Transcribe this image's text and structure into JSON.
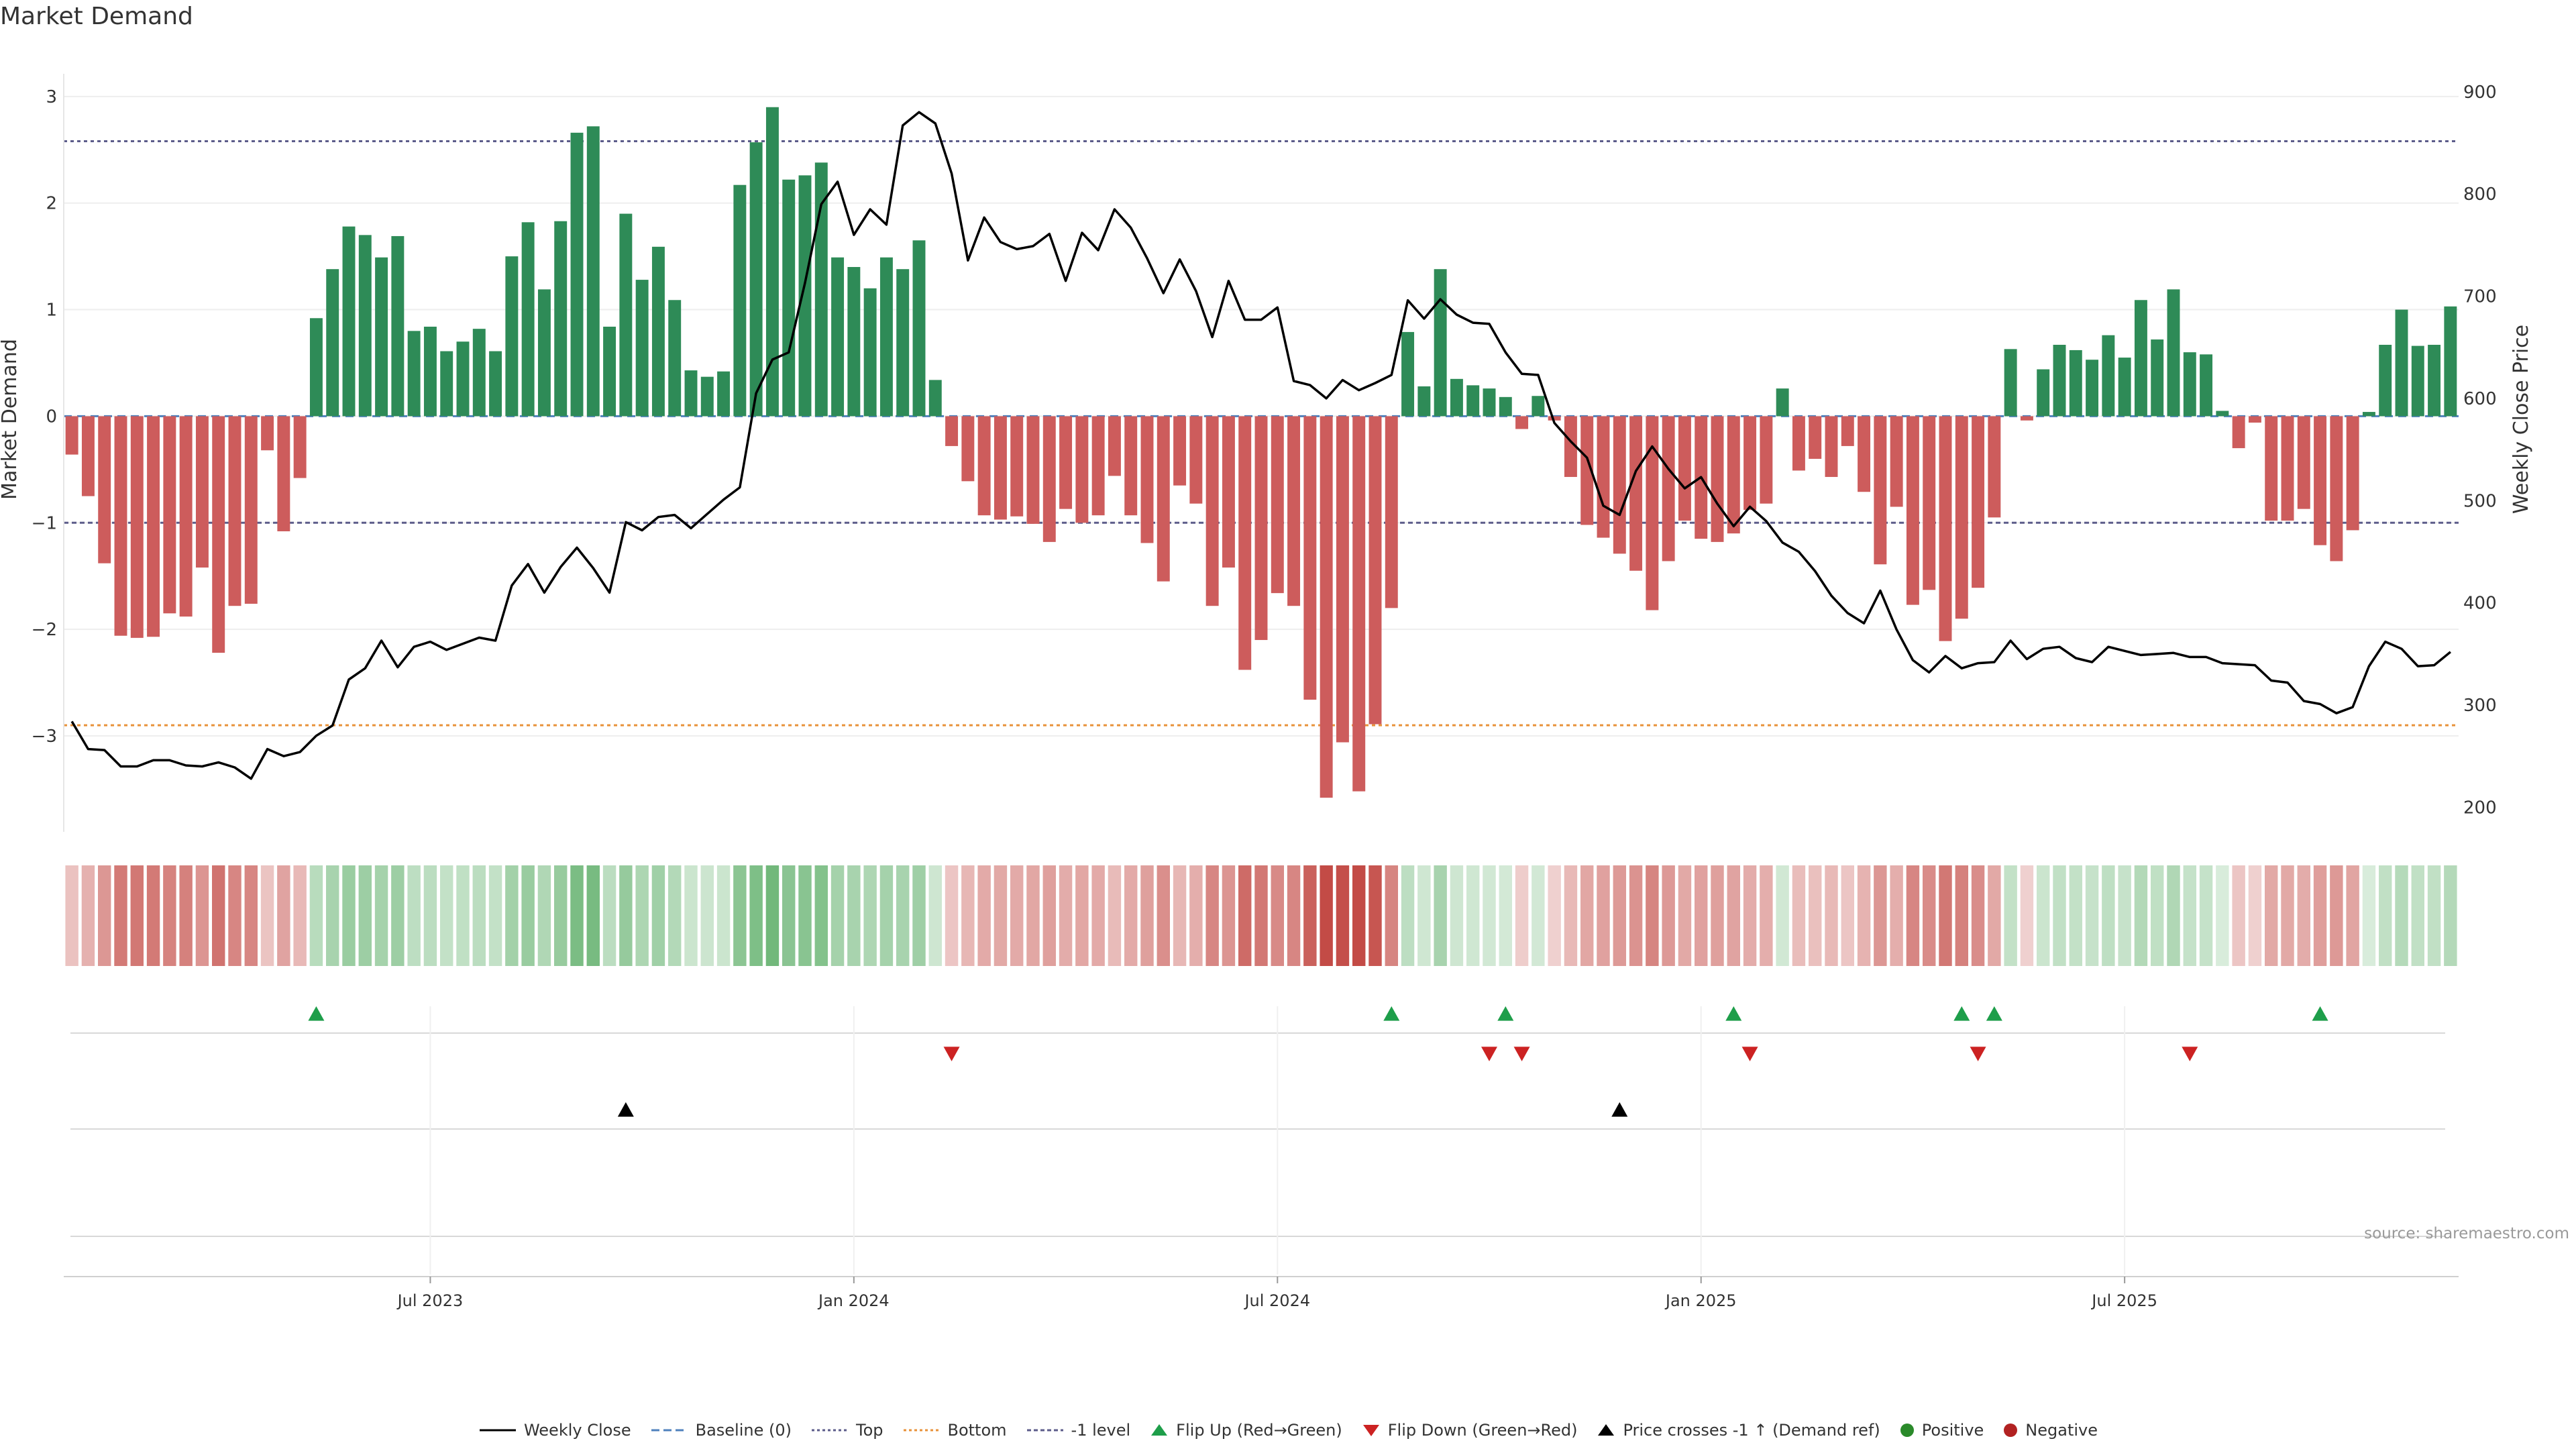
{
  "title": "Market Demand",
  "source": "source: sharemaestro.com",
  "colors": {
    "positive": "#2e8b57",
    "negative": "#cd5c5c",
    "price": "#000000",
    "top": "#5c5c8a",
    "bottom": "#e8923a",
    "baseline": "#4f81bd",
    "flip_up": "#1e9e4a",
    "flip_down": "#cc2222",
    "cross": "#000000",
    "grid": "#eeeeee"
  },
  "chart_data": {
    "type": "bar",
    "title": "Market Demand",
    "ylabel": "Market Demand",
    "y2label": "Weekly Close Price",
    "ylim": [
      -3.9,
      3.15
    ],
    "y2lim": [
      176,
      911
    ],
    "yticks": [
      {
        "v": 3,
        "label": "3"
      },
      {
        "v": 2,
        "label": "2"
      },
      {
        "v": 1,
        "label": "1"
      },
      {
        "v": 0,
        "label": "0"
      },
      {
        "v": -1,
        "label": "−1"
      },
      {
        "v": -2,
        "label": "−2"
      },
      {
        "v": -3,
        "label": "−3"
      }
    ],
    "y2ticks": [
      {
        "v": 900,
        "label": "900"
      },
      {
        "v": 800,
        "label": "800"
      },
      {
        "v": 700,
        "label": "700"
      },
      {
        "v": 600,
        "label": "600"
      },
      {
        "v": 500,
        "label": "500"
      },
      {
        "v": 400,
        "label": "400"
      },
      {
        "v": 300,
        "label": "300"
      },
      {
        "v": 200,
        "label": "200"
      }
    ],
    "xticks": [
      {
        "index": 22,
        "label": "Jul 2023"
      },
      {
        "index": 48,
        "label": "Jan 2024"
      },
      {
        "index": 74,
        "label": "Jul 2024"
      },
      {
        "index": 100,
        "label": "Jan 2025"
      },
      {
        "index": 126,
        "label": "Jul 2025"
      }
    ],
    "reference_lines": {
      "top": 2.58,
      "bottom": -2.9,
      "minus_one": -1,
      "baseline": 0
    },
    "demand": [
      -0.36,
      -0.75,
      -1.38,
      -2.06,
      -2.08,
      -2.07,
      -1.85,
      -1.88,
      -1.42,
      -2.22,
      -1.78,
      -1.76,
      -0.32,
      -1.08,
      -0.58,
      0.92,
      1.38,
      1.78,
      1.7,
      1.49,
      1.69,
      0.8,
      0.84,
      0.61,
      0.7,
      0.82,
      0.61,
      1.5,
      1.82,
      1.19,
      1.83,
      2.66,
      2.72,
      0.84,
      1.9,
      1.28,
      1.59,
      1.09,
      0.43,
      0.37,
      0.42,
      2.17,
      2.57,
      2.9,
      2.22,
      2.26,
      2.38,
      1.49,
      1.4,
      1.2,
      1.49,
      1.38,
      1.65,
      0.34,
      -0.28,
      -0.61,
      -0.93,
      -0.97,
      -0.94,
      -1.01,
      -1.18,
      -0.87,
      -1.0,
      -0.93,
      -0.56,
      -0.93,
      -1.19,
      -1.55,
      -0.65,
      -0.82,
      -1.78,
      -1.42,
      -2.38,
      -2.1,
      -1.66,
      -1.78,
      -2.66,
      -3.58,
      -3.06,
      -3.52,
      -2.89,
      -1.8,
      0.79,
      0.28,
      1.38,
      0.35,
      0.29,
      0.26,
      0.18,
      -0.12,
      0.19,
      -0.04,
      -0.57,
      -1.02,
      -1.14,
      -1.29,
      -1.45,
      -1.82,
      -1.36,
      -0.98,
      -1.15,
      -1.18,
      -1.1,
      -0.88,
      -0.82,
      0.26,
      -0.51,
      -0.4,
      -0.57,
      -0.28,
      -0.71,
      -1.39,
      -0.85,
      -1.77,
      -1.63,
      -2.11,
      -1.9,
      -1.61,
      -0.95,
      0.63,
      -0.04,
      0.44,
      0.67,
      0.62,
      0.53,
      0.76,
      0.55,
      1.09,
      0.72,
      1.19,
      0.6,
      0.58,
      0.05,
      -0.3,
      -0.06,
      -0.98,
      -0.98,
      -0.87,
      -1.21,
      -1.36,
      -1.07,
      0.04,
      0.67,
      1.0,
      0.66,
      0.67,
      1.03
    ],
    "price": [
      284,
      257,
      256,
      240,
      240,
      246,
      246,
      241,
      240,
      244,
      239,
      228,
      257,
      250,
      254,
      270,
      280,
      325,
      336,
      363,
      337,
      357,
      362,
      354,
      360,
      366,
      363,
      417,
      438,
      410,
      435,
      454,
      434,
      410,
      479,
      471,
      484,
      486,
      473,
      487,
      501,
      513,
      605,
      638,
      645,
      713,
      790,
      812,
      760,
      785,
      770,
      867,
      880,
      869,
      820,
      735,
      777,
      753,
      746,
      749,
      761,
      715,
      762,
      745,
      785,
      767,
      737,
      703,
      736,
      705,
      660,
      715,
      677,
      677,
      689,
      617,
      613,
      600,
      618,
      608,
      615,
      623,
      696,
      678,
      697,
      682,
      674,
      673,
      645,
      624,
      623,
      576,
      558,
      542,
      495,
      486,
      529,
      553,
      531,
      512,
      523,
      497,
      475,
      494,
      480,
      459,
      450,
      431,
      407,
      390,
      380,
      412,
      374,
      344,
      332,
      348,
      336,
      341,
      342,
      363,
      345,
      355,
      357,
      346,
      342,
      357,
      353,
      349,
      350,
      351,
      347,
      347,
      341,
      340,
      339,
      324,
      322,
      304,
      301,
      292,
      298,
      338,
      362,
      355,
      338,
      339,
      352
    ],
    "flip_up_index": [
      15,
      81,
      88,
      102,
      116,
      118,
      138
    ],
    "flip_down_index": [
      54,
      87,
      89,
      103,
      117,
      130
    ],
    "price_cross_index": [
      34,
      95
    ],
    "legend": [
      {
        "key": "weekly_close",
        "label": "Weekly Close"
      },
      {
        "key": "baseline",
        "label": "Baseline (0)"
      },
      {
        "key": "top",
        "label": "Top"
      },
      {
        "key": "bottom",
        "label": "Bottom"
      },
      {
        "key": "minus_one",
        "label": "-1 level"
      },
      {
        "key": "flip_up",
        "label": "Flip Up (Red→Green)"
      },
      {
        "key": "flip_down",
        "label": "Flip Down (Green→Red)"
      },
      {
        "key": "cross",
        "label": "Price crosses -1 ↑ (Demand ref)"
      },
      {
        "key": "positive",
        "label": "Positive"
      },
      {
        "key": "negative",
        "label": "Negative"
      }
    ]
  }
}
